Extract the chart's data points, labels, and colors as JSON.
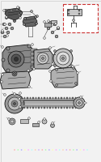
{
  "bg_color": "#f2f2f2",
  "diagram_bg": "#ffffff",
  "part_color": "#333333",
  "dark_part": "#111111",
  "line_color": "#444444",
  "thin_line": "#666666",
  "inset_box_color": "#cc3333",
  "inset_box_color2": "#bb44aa",
  "footer_dot_colors": [
    "#ffaaaa",
    "#aaffaa",
    "#aaaaff",
    "#ffffaa",
    "#ffaaff",
    "#aaffff",
    "#ffccaa",
    "#ccaaff"
  ],
  "fig_width": 1.25,
  "fig_height": 2.0,
  "dpi": 100
}
